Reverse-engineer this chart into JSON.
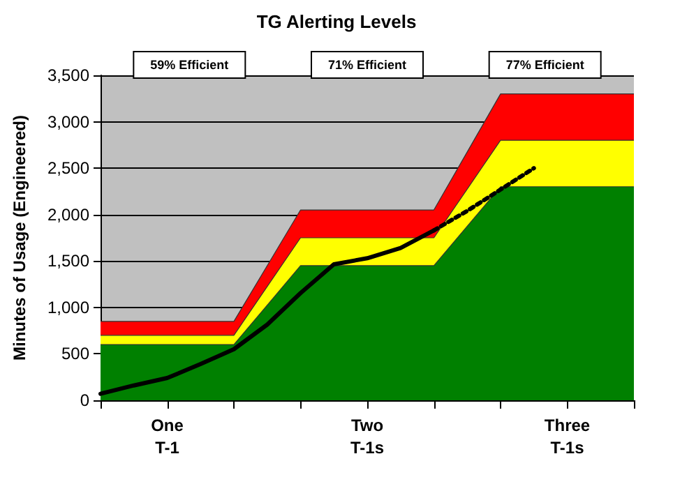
{
  "chart_data": {
    "type": "area",
    "title": "TG Alerting Levels",
    "ylabel": "Minutes of Usage (Engineered)",
    "annotations": [
      "59% Efficient",
      "71% Efficient",
      "77% Efficient"
    ],
    "categories": [
      null,
      null,
      "One\nT-1",
      null,
      null,
      null,
      null,
      null,
      "Two\nT-1s",
      null,
      null,
      null,
      null,
      null,
      "Three\nT-1s",
      null,
      null
    ],
    "stacked": true,
    "series": [
      {
        "color": "#008000",
        "values": [
          600,
          600,
          600,
          600,
          600,
          1025,
          1450,
          1450,
          1450,
          1450,
          1450,
          1875,
          2300,
          2300,
          2300,
          2300,
          2300
        ]
      },
      {
        "color": "#ffff00",
        "values": [
          100,
          100,
          100,
          100,
          100,
          200,
          300,
          300,
          300,
          300,
          300,
          400,
          500,
          500,
          500,
          500,
          500
        ]
      },
      {
        "color": "#ff0000",
        "values": [
          150,
          150,
          150,
          150,
          150,
          225,
          300,
          300,
          300,
          300,
          300,
          400,
          500,
          500,
          500,
          500,
          500
        ]
      },
      {
        "type": "line",
        "color": "#000000",
        "line_style": "solid",
        "values": [
          70,
          160,
          240,
          390,
          550,
          815,
          1155,
          1465,
          1530,
          1640,
          1830,
          null,
          null,
          null,
          null,
          null,
          null
        ]
      },
      {
        "type": "line",
        "color": "#000000",
        "line_style": "dotted",
        "values": [
          null,
          null,
          null,
          null,
          null,
          null,
          null,
          null,
          null,
          null,
          1830,
          2040,
          2270,
          2500,
          null,
          null,
          null
        ]
      }
    ],
    "ylim": [
      0,
      3500
    ],
    "yticks": [
      0,
      500,
      {
        "value": 1000,
        "label": "1,000"
      },
      {
        "value": 1500,
        "label": "1,500"
      },
      {
        "value": 2000,
        "label": "2,000"
      },
      {
        "value": 2500,
        "label": "2,500"
      },
      {
        "value": 3000,
        "label": "3,000"
      },
      {
        "value": 3500,
        "label": "3,500"
      }
    ],
    "grid": "y",
    "marker": "none"
  }
}
